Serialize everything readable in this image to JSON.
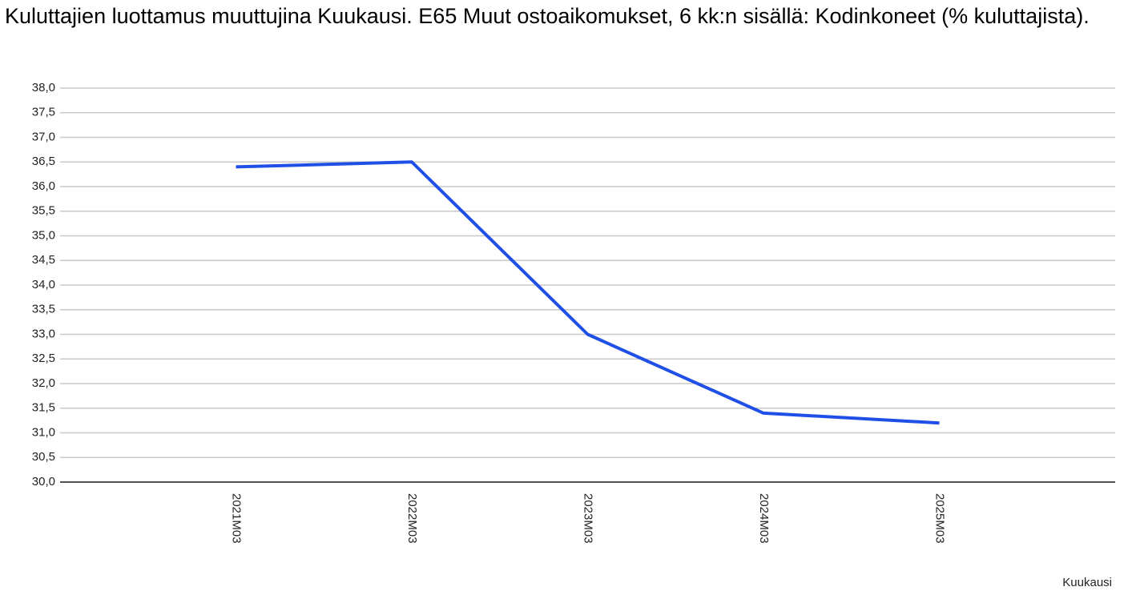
{
  "chart_data": {
    "type": "line",
    "title": "Kuluttajien luottamus muuttujina Kuukausi. E65 Muut ostoaikomukset, 6 kk:n sisällä: Kodinkoneet (% kuluttajista).",
    "x_label": "Kuukausi",
    "categories": [
      "2021M03",
      "2022M03",
      "2023M03",
      "2024M03",
      "2025M03"
    ],
    "values": [
      36.4,
      36.5,
      33.0,
      31.4,
      31.2
    ],
    "color": "#1f4fe6",
    "ylim": [
      30,
      38
    ],
    "yticks": [
      {
        "value": 30,
        "label": "30,0"
      },
      {
        "value": 30.5,
        "label": "30,5"
      },
      {
        "value": 31,
        "label": "31,0"
      },
      {
        "value": 31.5,
        "label": "31,5"
      },
      {
        "value": 32,
        "label": "32,0"
      },
      {
        "value": 32.5,
        "label": "32,5"
      },
      {
        "value": 33,
        "label": "33,0"
      },
      {
        "value": 33.5,
        "label": "33,5"
      },
      {
        "value": 34,
        "label": "34,0"
      },
      {
        "value": 34.5,
        "label": "34,5"
      },
      {
        "value": 35,
        "label": "35,0"
      },
      {
        "value": 35.5,
        "label": "35,5"
      },
      {
        "value": 36,
        "label": "36,0"
      },
      {
        "value": 36.5,
        "label": "36,5"
      },
      {
        "value": 37,
        "label": "37,0"
      },
      {
        "value": 37.5,
        "label": "37,5"
      },
      {
        "value": 38,
        "label": "38,0"
      }
    ],
    "grid": true
  }
}
